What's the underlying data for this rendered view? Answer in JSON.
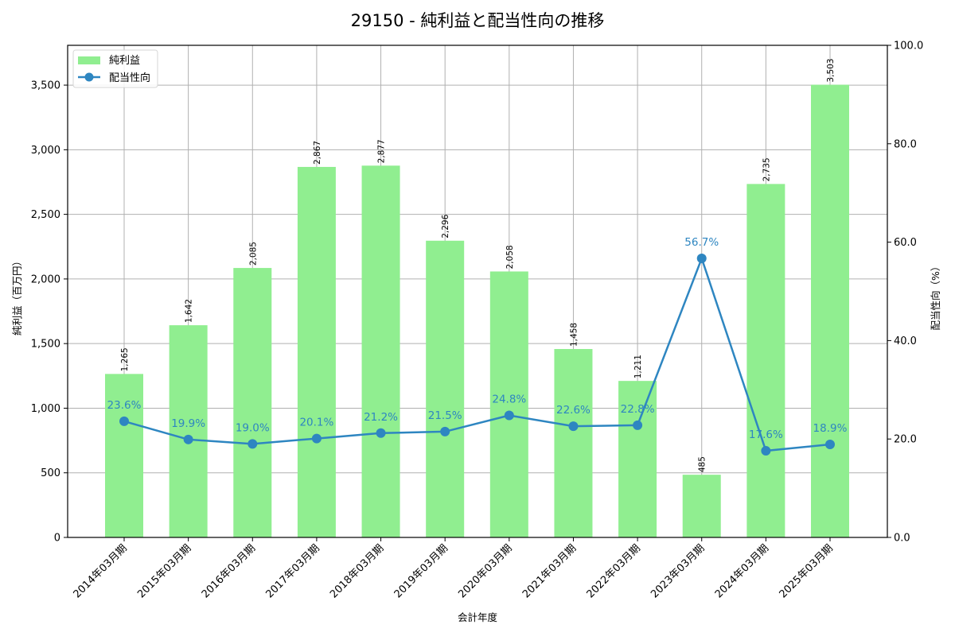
{
  "title": "29150 - 純利益と配当性向の推移",
  "colors": {
    "bar": "#90ee90",
    "line": "#2e86c1",
    "grid": "#b0b0b0",
    "axis": "#000000"
  },
  "legend": {
    "items": [
      {
        "label": "純利益",
        "type": "bar"
      },
      {
        "label": "配当性向",
        "type": "line"
      }
    ]
  },
  "chart_data": {
    "type": "bar+line",
    "title": "29150 - 純利益と配当性向の推移",
    "xlabel": "会計年度",
    "ylabel": "純利益（百万円）",
    "y2label": "配当性向（%）",
    "categories": [
      "2014年03月期",
      "2015年03月期",
      "2016年03月期",
      "2017年03月期",
      "2018年03月期",
      "2019年03月期",
      "2020年03月期",
      "2021年03月期",
      "2022年03月期",
      "2023年03月期",
      "2024年03月期",
      "2025年03月期"
    ],
    "series": [
      {
        "name": "純利益",
        "type": "bar",
        "axis": "left",
        "values": [
          1265,
          1642,
          2085,
          2867,
          2877,
          2296,
          2058,
          1458,
          1211,
          485,
          2735,
          3503
        ],
        "labels": [
          "1,265",
          "1,642",
          "2,085",
          "2,867",
          "2,877",
          "2,296",
          "2,058",
          "1,458",
          "1,211",
          "485",
          "2,735",
          "3,503"
        ]
      },
      {
        "name": "配当性向",
        "type": "line",
        "axis": "right",
        "values": [
          23.6,
          19.9,
          19.0,
          20.1,
          21.2,
          21.5,
          24.8,
          22.6,
          22.8,
          56.7,
          17.6,
          18.9
        ],
        "labels": [
          "23.6%",
          "19.9%",
          "19.0%",
          "20.1%",
          "21.2%",
          "21.5%",
          "24.8%",
          "22.6%",
          "22.8%",
          "56.7%",
          "17.6%",
          "18.9%"
        ]
      }
    ],
    "ylim": [
      0,
      3808
    ],
    "y2lim": [
      0,
      100
    ],
    "yticks": [
      0,
      500,
      1000,
      1500,
      2000,
      2500,
      3000,
      3500
    ],
    "ytick_labels": [
      "0",
      "500",
      "1,000",
      "1,500",
      "2,000",
      "2,500",
      "3,000",
      "3,500"
    ],
    "y2ticks": [
      0,
      20,
      40,
      60,
      80,
      100
    ],
    "y2tick_labels": [
      "0.0",
      "20.0",
      "40.0",
      "60.0",
      "80.0",
      "100.0"
    ],
    "grid": true,
    "legend_position": "upper left"
  }
}
